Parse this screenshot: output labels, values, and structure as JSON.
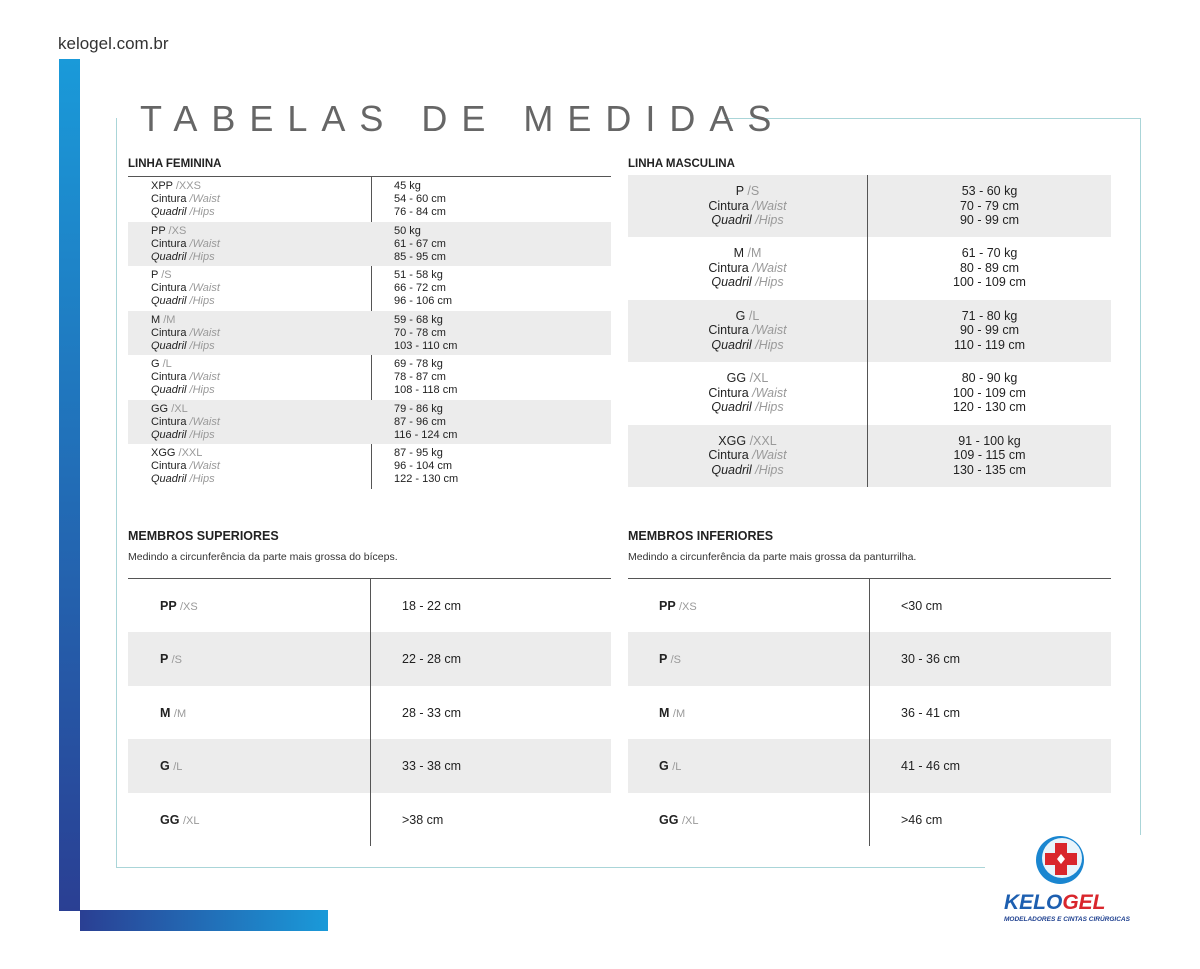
{
  "site": "kelogel.com.br",
  "title": "TABELAS DE MEDIDAS",
  "labels": {
    "waist_pt": "Cintura",
    "waist_en": "/Waist",
    "hips_pt": "Quadril",
    "hips_en": "/Hips"
  },
  "feminina": {
    "title": "LINHA FEMININA",
    "rows": [
      {
        "size": "XPP",
        "en": "/XXS",
        "weight": "45 kg",
        "waist": "54 - 60 cm",
        "hips": "76 - 84 cm"
      },
      {
        "size": "PP",
        "en": "/XS",
        "weight": "50 kg",
        "waist": "61 - 67 cm",
        "hips": "85 - 95 cm"
      },
      {
        "size": "P",
        "en": "/S",
        "weight": "51 - 58 kg",
        "waist": "66 - 72 cm",
        "hips": "96 - 106 cm"
      },
      {
        "size": "M",
        "en": "/M",
        "weight": "59 - 68 kg",
        "waist": "70 - 78 cm",
        "hips": "103 - 110 cm"
      },
      {
        "size": "G",
        "en": "/L",
        "weight": "69 - 78 kg",
        "waist": "78 - 87 cm",
        "hips": "108 - 118 cm"
      },
      {
        "size": "GG",
        "en": "/XL",
        "weight": "79 - 86 kg",
        "waist": "87 - 96 cm",
        "hips": "116 - 124 cm"
      },
      {
        "size": "XGG",
        "en": "/XXL",
        "weight": "87 - 95 kg",
        "waist": "96 - 104 cm",
        "hips": "122 - 130 cm"
      }
    ]
  },
  "masculina": {
    "title": "LINHA MASCULINA",
    "rows": [
      {
        "size": "P",
        "en": "/S",
        "weight": "53 - 60 kg",
        "waist": "70 - 79 cm",
        "hips": "90 - 99 cm"
      },
      {
        "size": "M",
        "en": "/M",
        "weight": "61 - 70 kg",
        "waist": "80 - 89 cm",
        "hips": "100 - 109 cm"
      },
      {
        "size": "G",
        "en": "/L",
        "weight": "71 - 80 kg",
        "waist": "90 - 99 cm",
        "hips": "110 - 119 cm"
      },
      {
        "size": "GG",
        "en": "/XL",
        "weight": "80 - 90 kg",
        "waist": "100 - 109 cm",
        "hips": "120 - 130 cm"
      },
      {
        "size": "XGG",
        "en": "/XXL",
        "weight": "91 - 100 kg",
        "waist": "109 - 115 cm",
        "hips": "130 - 135 cm"
      }
    ]
  },
  "superiores": {
    "title": "MEMBROS SUPERIORES",
    "subtitle": "Medindo a circunferência da parte mais grossa do bíceps.",
    "rows": [
      {
        "size": "PP",
        "en": "/XS",
        "value": "18 - 22 cm"
      },
      {
        "size": "P",
        "en": "/S",
        "value": "22 - 28 cm"
      },
      {
        "size": "M",
        "en": "/M",
        "value": "28 - 33 cm"
      },
      {
        "size": "G",
        "en": "/L",
        "value": "33 - 38 cm"
      },
      {
        "size": "GG",
        "en": "/XL",
        "value": ">38 cm"
      }
    ]
  },
  "inferiores": {
    "title": "MEMBROS INFERIORES",
    "subtitle": "Medindo a circunferência da parte mais grossa da panturrilha.",
    "rows": [
      {
        "size": "PP",
        "en": "/XS",
        "value": "<30 cm"
      },
      {
        "size": "P",
        "en": "/S",
        "value": "30 - 36 cm"
      },
      {
        "size": "M",
        "en": "/M",
        "value": "36 - 41 cm"
      },
      {
        "size": "G",
        "en": "/L",
        "value": "41 - 46 cm"
      },
      {
        "size": "GG",
        "en": "/XL",
        "value": ">46 cm"
      }
    ]
  },
  "logo": {
    "brand": "KELOGEL",
    "tagline": "MODELADORES E CINTAS CIRÚRGICAS",
    "colors": {
      "blue": "#1d5fb0",
      "red": "#d9262c"
    }
  }
}
